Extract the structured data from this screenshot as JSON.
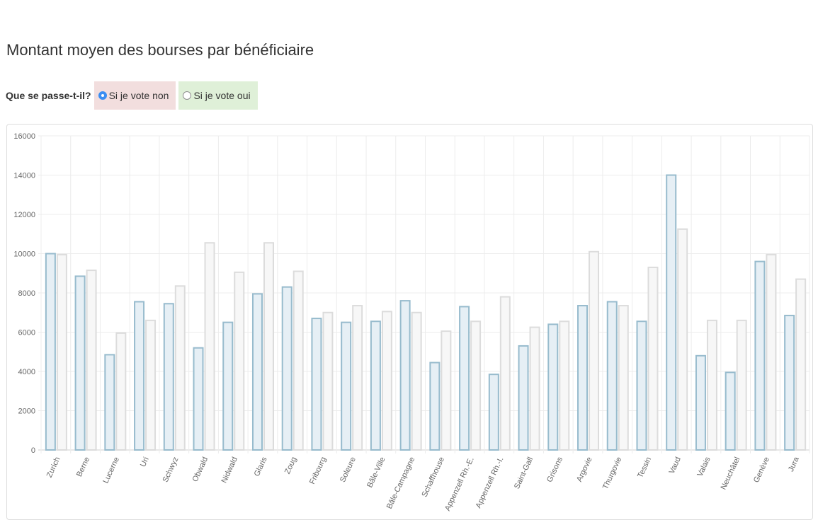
{
  "page": {
    "title": "Montant moyen des bourses par bénéficiaire"
  },
  "controls": {
    "question": "Que se passe-t-il?",
    "options": [
      {
        "label": "Si je vote non",
        "selected": true,
        "color": "#f2dede"
      },
      {
        "label": "Si je vote oui",
        "selected": false,
        "color": "#dff0d8"
      }
    ]
  },
  "chart_data": {
    "type": "bar",
    "title": "",
    "xlabel": "",
    "ylabel": "",
    "ylim": [
      0,
      16000
    ],
    "yticks": [
      0,
      2000,
      4000,
      6000,
      8000,
      10000,
      12000,
      14000,
      16000
    ],
    "grid": true,
    "categories": [
      "Zurich",
      "Berne",
      "Lucerne",
      "Uri",
      "Schwyz",
      "Obwald",
      "Nidwald",
      "Glaris",
      "Zoug",
      "Fribourg",
      "Soleure",
      "Bâle-Ville",
      "Bâle-Campagne",
      "Schaffhouse",
      "Appenzell Rh.-E.",
      "Appenzell Rh.-I.",
      "Saint-Gall",
      "Grisons",
      "Argovie",
      "Thurgovie",
      "Tessin",
      "Vaud",
      "Valais",
      "Neuchâtel",
      "Genève",
      "Jura"
    ],
    "series": [
      {
        "values": [
          10000,
          8850,
          4850,
          7550,
          7450,
          5200,
          6500,
          7950,
          8300,
          6700,
          6500,
          6550,
          7600,
          4450,
          7300,
          3850,
          5300,
          6400,
          7350,
          7550,
          6550,
          14000,
          4800,
          3950,
          9600,
          6850
        ],
        "fill": "#e6eff5",
        "stroke": "#97bbcd"
      },
      {
        "values": [
          9950,
          9150,
          5950,
          6600,
          8350,
          10550,
          9050,
          10550,
          9100,
          7000,
          7350,
          7050,
          7000,
          6050,
          6550,
          7800,
          6250,
          6550,
          10100,
          7350,
          9300,
          11250,
          6600,
          6600,
          9950,
          8700
        ],
        "fill": "#f7f7f7",
        "stroke": "#dcdcdc"
      }
    ]
  }
}
